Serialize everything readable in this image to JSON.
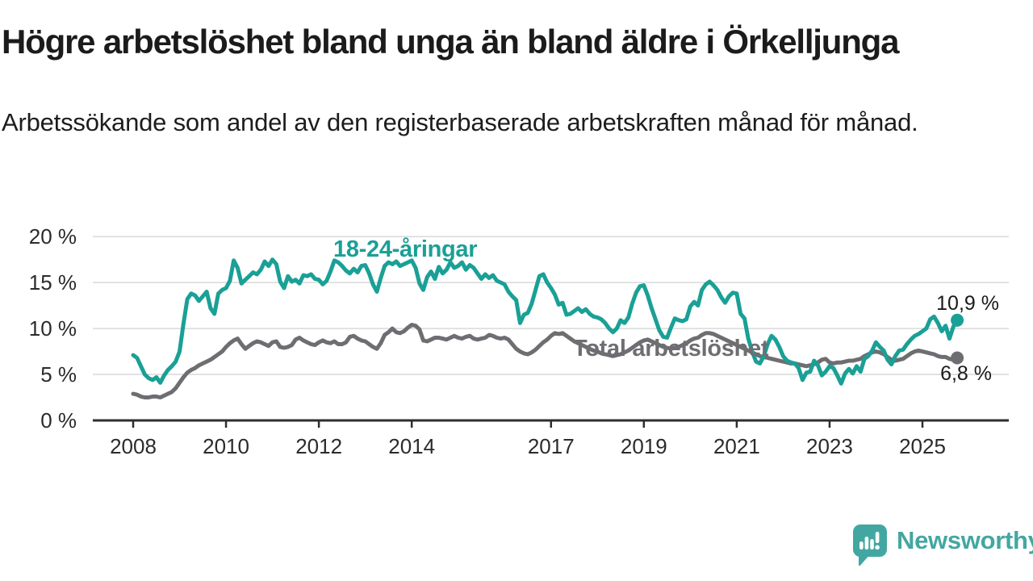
{
  "title": "Högre arbetslöshet bland unga än bland äldre i Örkelljunga",
  "subtitle": "Arbetssökande som andel av den registerbaserade arbetskraften månad för månad.",
  "logo": {
    "text": "Newsworthy",
    "icon": "newsworthy-speech-bubble-bar-chart-icon"
  },
  "colors": {
    "young": "#1aa096",
    "total": "#6e6e72",
    "axis": "#2e2e2e",
    "grid": "#d9d9d9",
    "tick_text": "#2b2b2b",
    "annotation_text": "#1a1a1a",
    "logo_teal": "#43a7a1"
  },
  "chart_data": {
    "type": "line",
    "title": "Högre arbetslöshet bland unga än bland äldre i Örkelljunga",
    "subtitle": "Arbetssökande som andel av den registerbaserade arbetskraften månad för månad.",
    "unit": "percent",
    "frequency": "monthly",
    "x_start": "2008-01",
    "x_end": "2025-10",
    "ylim": [
      0,
      20
    ],
    "grid": "horizontal",
    "legend_position": "inline-labels",
    "x_tick_years": [
      2008,
      2010,
      2012,
      2014,
      2017,
      2019,
      2021,
      2023,
      2025
    ],
    "y_ticks": [
      {
        "value": 0,
        "label": "0 %"
      },
      {
        "value": 5,
        "label": "5 %"
      },
      {
        "value": 10,
        "label": "10 %"
      },
      {
        "value": 15,
        "label": "15 %"
      },
      {
        "value": 20,
        "label": "20 %"
      }
    ],
    "series": [
      {
        "name": "18-24-aringar",
        "label": "18-24-åringar",
        "end_label": "10,9 %",
        "last_value": 10.9,
        "color": "#1aa096",
        "values": [
          7.1,
          6.8,
          5.9,
          5.0,
          4.6,
          4.4,
          4.7,
          4.1,
          4.9,
          5.5,
          5.9,
          6.4,
          7.5,
          10.5,
          13.2,
          13.8,
          13.6,
          13.0,
          13.5,
          14.0,
          12.2,
          11.6,
          13.8,
          14.2,
          14.4,
          15.2,
          17.4,
          16.6,
          14.9,
          15.3,
          15.7,
          16.1,
          15.9,
          16.4,
          17.3,
          16.8,
          17.5,
          17.0,
          15.1,
          14.4,
          15.7,
          15.1,
          15.3,
          14.9,
          15.8,
          15.7,
          15.9,
          15.4,
          15.3,
          14.8,
          15.2,
          16.2,
          17.4,
          17.2,
          16.8,
          16.3,
          16.0,
          16.5,
          16.1,
          16.8,
          16.9,
          16.0,
          14.8,
          14.0,
          15.5,
          16.8,
          17.2,
          17.0,
          17.3,
          16.8,
          17.0,
          17.2,
          17.4,
          16.6,
          14.9,
          14.2,
          15.6,
          16.2,
          15.4,
          16.7,
          16.0,
          16.4,
          17.2,
          16.6,
          16.8,
          17.2,
          16.4,
          16.9,
          16.6,
          16.0,
          15.4,
          15.9,
          15.5,
          15.8,
          15.2,
          15.0,
          14.8,
          14.0,
          13.5,
          13.1,
          10.6,
          11.5,
          11.7,
          12.7,
          14.2,
          15.7,
          15.9,
          15.0,
          14.4,
          13.7,
          12.6,
          12.8,
          11.5,
          11.6,
          11.9,
          12.2,
          11.8,
          12.1,
          11.6,
          11.3,
          11.2,
          11.0,
          10.6,
          10.0,
          9.6,
          10.0,
          10.9,
          10.6,
          11.2,
          12.7,
          13.9,
          14.6,
          14.7,
          13.6,
          12.2,
          11.0,
          9.8,
          9.1,
          9.0,
          10.1,
          11.1,
          10.9,
          10.8,
          11.0,
          12.4,
          12.9,
          12.5,
          14.2,
          14.8,
          15.1,
          14.7,
          14.2,
          13.4,
          12.8,
          13.5,
          13.9,
          13.8,
          11.6,
          11.1,
          8.9,
          7.5,
          6.4,
          6.2,
          7.0,
          8.3,
          9.2,
          8.8,
          8.0,
          7.0,
          6.5,
          6.3,
          6.2,
          5.7,
          4.4,
          5.2,
          5.3,
          6.5,
          6.0,
          4.9,
          5.3,
          5.9,
          5.7,
          4.9,
          4.0,
          5.1,
          5.6,
          5.1,
          5.9,
          5.3,
          6.7,
          7.0,
          7.6,
          8.5,
          8.0,
          7.6,
          6.6,
          6.1,
          7.0,
          7.6,
          7.7,
          8.3,
          8.8,
          9.2,
          9.4,
          9.7,
          10.0,
          11.0,
          11.3,
          10.6,
          9.7,
          10.3,
          8.9,
          10.2,
          10.9
        ]
      },
      {
        "name": "total-arbetsloshet",
        "label": "Total arbetslöshet",
        "end_label": "6,8 %",
        "last_value": 6.8,
        "color": "#6e6e72",
        "values": [
          2.9,
          2.8,
          2.6,
          2.5,
          2.5,
          2.6,
          2.6,
          2.5,
          2.7,
          2.9,
          3.1,
          3.5,
          4.1,
          4.7,
          5.2,
          5.5,
          5.7,
          6.0,
          6.2,
          6.4,
          6.6,
          6.9,
          7.2,
          7.5,
          8.0,
          8.4,
          8.7,
          8.9,
          8.3,
          7.8,
          8.1,
          8.4,
          8.6,
          8.5,
          8.3,
          8.1,
          8.5,
          8.6,
          8.0,
          7.9,
          8.0,
          8.2,
          8.8,
          9.0,
          8.7,
          8.5,
          8.3,
          8.2,
          8.5,
          8.7,
          8.5,
          8.4,
          8.6,
          8.3,
          8.3,
          8.5,
          9.1,
          9.2,
          8.9,
          8.7,
          8.6,
          8.3,
          8.0,
          7.8,
          8.4,
          9.3,
          9.6,
          10.0,
          9.6,
          9.5,
          9.7,
          10.1,
          10.4,
          10.3,
          9.9,
          8.7,
          8.6,
          8.8,
          9.0,
          9.0,
          8.9,
          8.8,
          9.0,
          9.2,
          9.0,
          8.9,
          9.1,
          9.2,
          8.9,
          8.8,
          8.9,
          9.0,
          9.3,
          9.2,
          9.0,
          8.9,
          9.0,
          8.8,
          8.3,
          7.8,
          7.5,
          7.3,
          7.2,
          7.4,
          7.7,
          8.1,
          8.5,
          8.8,
          9.2,
          9.5,
          9.4,
          9.5,
          9.2,
          8.9,
          8.6,
          8.4,
          8.2,
          8.0,
          7.8,
          7.6,
          7.5,
          7.3,
          7.2,
          7.1,
          7.0,
          7.1,
          7.2,
          7.4,
          7.6,
          7.9,
          8.2,
          8.5,
          8.7,
          8.8,
          8.6,
          8.4,
          8.2,
          8.0,
          7.9,
          7.8,
          7.9,
          8.0,
          8.2,
          8.4,
          8.7,
          8.9,
          9.0,
          9.3,
          9.5,
          9.5,
          9.4,
          9.2,
          9.0,
          8.8,
          8.6,
          8.4,
          8.2,
          8.0,
          7.8,
          7.6,
          7.4,
          7.2,
          7.0,
          6.9,
          6.8,
          6.7,
          6.6,
          6.5,
          6.4,
          6.3,
          6.2,
          6.2,
          6.1,
          6.0,
          5.9,
          6.0,
          6.1,
          6.3,
          6.6,
          6.7,
          6.3,
          6.2,
          6.3,
          6.3,
          6.4,
          6.5,
          6.5,
          6.6,
          6.7,
          7.0,
          7.2,
          7.4,
          7.5,
          7.4,
          7.2,
          6.9,
          6.6,
          6.5,
          6.6,
          6.7,
          7.0,
          7.3,
          7.5,
          7.6,
          7.5,
          7.4,
          7.3,
          7.2,
          7.0,
          6.9,
          6.9,
          6.7,
          6.6,
          6.8
        ]
      }
    ]
  }
}
